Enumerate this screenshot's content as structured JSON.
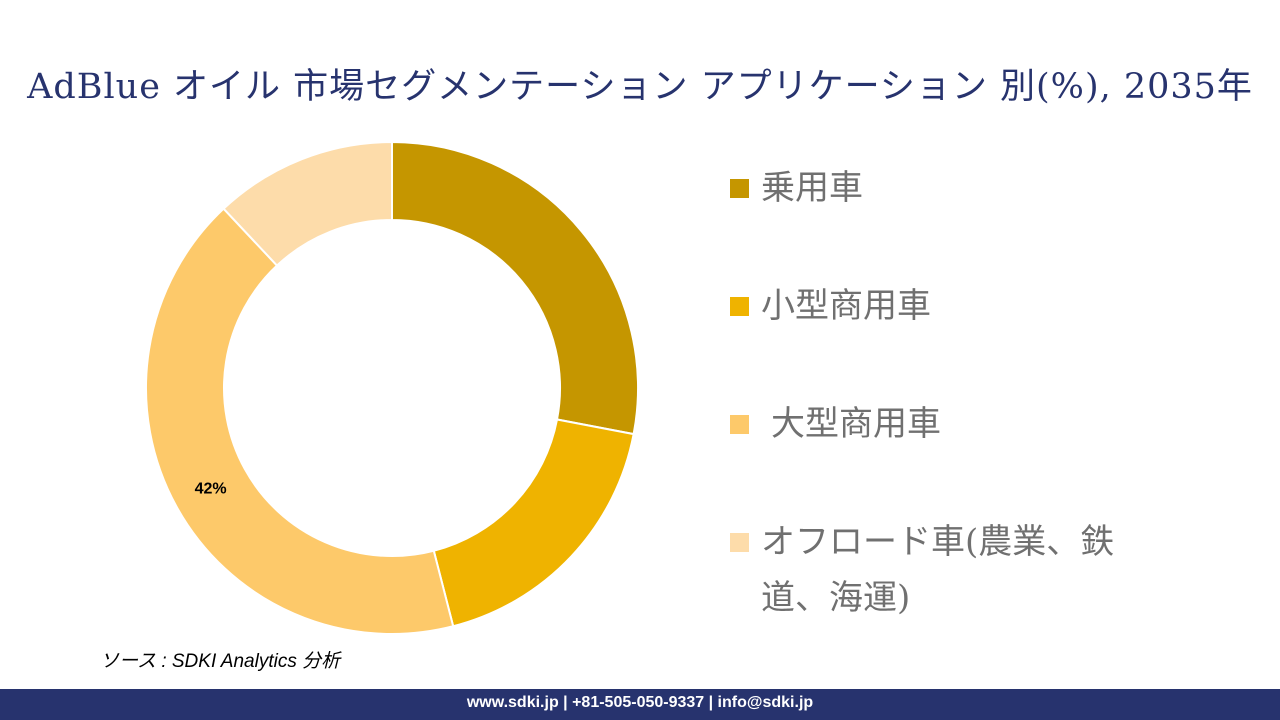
{
  "chart_data": {
    "type": "pie",
    "donut": true,
    "title": "AdBlue オイル 市場セグメンテーション アプリケーション 別(%), 2035年",
    "categories": [
      "乗用車",
      "小型商用車",
      "大型商用車",
      "オフロード車(農業、鉄道、海運)"
    ],
    "values": [
      28,
      18,
      42,
      12
    ],
    "colors": [
      "#c59600",
      "#efb300",
      "#fdc96a",
      "#fddcaa"
    ],
    "data_labels": {
      "2": "42%"
    },
    "legend_position": "right"
  },
  "source": "ソース : SDKI Analytics 分析",
  "footer": "www.sdki.jp | +81-505-050-9337 | info@sdki.jp"
}
